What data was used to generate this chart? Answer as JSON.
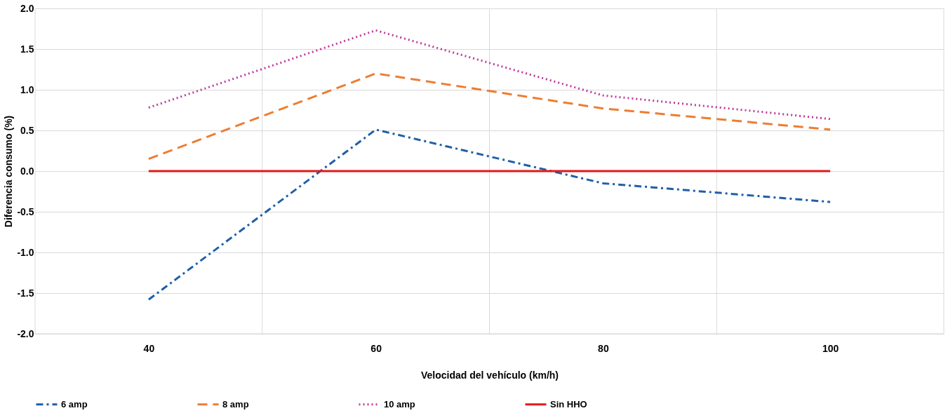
{
  "chart_data": {
    "type": "line",
    "xlabel": "Velocidad del vehículo (km/h)",
    "ylabel": "Diferencia consumo  (%)",
    "x": [
      40,
      60,
      80,
      100
    ],
    "series": [
      {
        "name": "6 amp",
        "color": "#1f5fa8",
        "values": [
          -1.58,
          0.51,
          -0.15,
          -0.38
        ],
        "line_style": "dashdot"
      },
      {
        "name": "8 amp",
        "color": "#ed7d31",
        "values": [
          0.15,
          1.2,
          0.77,
          0.51
        ],
        "line_style": "dashed"
      },
      {
        "name": "10 amp",
        "color": "#c0399b",
        "values": [
          0.78,
          1.73,
          0.93,
          0.64
        ],
        "line_style": "dotted"
      },
      {
        "name": "Sin HHO",
        "color": "#e3191b",
        "values": [
          0,
          0,
          0,
          0
        ],
        "line_style": "solid"
      }
    ],
    "xlim": [
      30,
      110
    ],
    "xticks": [
      {
        "value": 30,
        "label": null
      },
      40,
      {
        "value": 50,
        "label": null
      },
      60,
      {
        "value": 70,
        "label": null
      },
      80,
      {
        "value": 90,
        "label": null
      },
      100,
      {
        "value": 110,
        "label": null
      }
    ],
    "ylim": [
      -2.0,
      2.0
    ],
    "yticks": [
      {
        "value": -2,
        "label": "-2.0"
      },
      {
        "value": -1.5,
        "label": "-1.5"
      },
      {
        "value": -1,
        "label": "-1.0"
      },
      {
        "value": -0.5,
        "label": "-0.5"
      },
      {
        "value": 0,
        "label": "0.0"
      },
      {
        "value": 0.5,
        "label": "0.5"
      },
      {
        "value": 1,
        "label": "1.0"
      },
      {
        "value": 1.5,
        "label": "1.5"
      },
      {
        "value": 2,
        "label": "2.0"
      }
    ],
    "grid": true,
    "legend": "bottom",
    "marker": "none"
  }
}
